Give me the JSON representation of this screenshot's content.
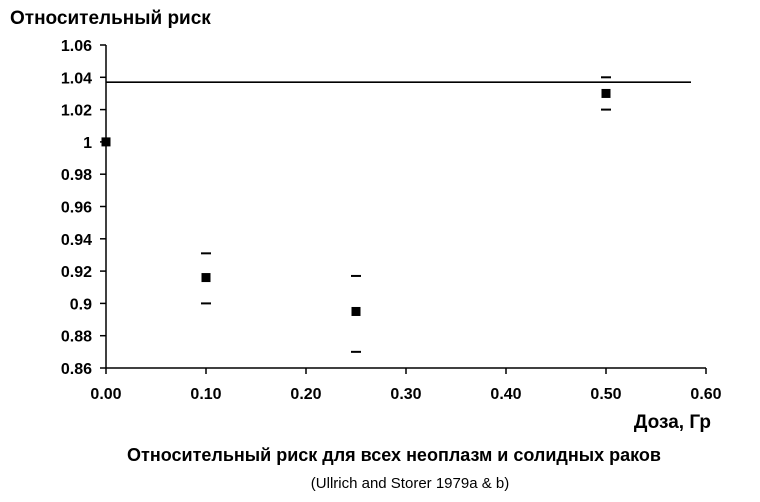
{
  "chart_data": {
    "type": "scatter",
    "ylabel": "Относительный риск",
    "xlabel": "Доза, Гр",
    "title": "Относительный риск для всех неоплазм и солидных раков",
    "subtitle": "(Ullrich and Storer 1979a & b)",
    "xlim": [
      0,
      0.6
    ],
    "ylim": [
      0.86,
      1.06
    ],
    "x_ticks": [
      "0.00",
      "0.10",
      "0.20",
      "0.30",
      "0.40",
      "0.50",
      "0.60"
    ],
    "y_ticks": [
      "1.06",
      "1.04",
      "1.02",
      "1",
      "0.98",
      "0.96",
      "0.94",
      "0.92",
      "0.9",
      "0.88",
      "0.86"
    ],
    "grid": false,
    "reference_line": {
      "y": 1.037,
      "x_from": 0,
      "x_to": 0.585
    },
    "points": [
      {
        "x": 0.0,
        "y": 1.0
      },
      {
        "x": 0.1,
        "y": 0.916,
        "lower": 0.9,
        "upper": 0.931
      },
      {
        "x": 0.25,
        "y": 0.895,
        "lower": 0.87,
        "upper": 0.917
      },
      {
        "x": 0.5,
        "y": 1.03,
        "lower": 1.02,
        "upper": 1.04
      }
    ]
  }
}
